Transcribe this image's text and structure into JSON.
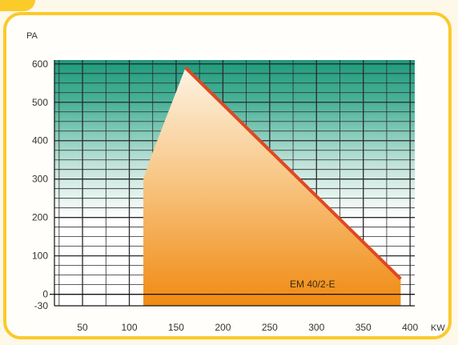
{
  "chart_data": {
    "type": "area",
    "series": [
      {
        "name": "EM 40/2-E",
        "x": [
          115,
          115,
          125,
          160,
          390,
          390
        ],
        "y": [
          -30,
          300,
          370,
          590,
          40,
          -30
        ]
      }
    ],
    "xlabel": "KW",
    "ylabel": "PA",
    "xlim": [
      20,
      405
    ],
    "ylim": [
      -30,
      610
    ],
    "xticks": [
      50,
      100,
      150,
      200,
      250,
      300,
      350,
      400
    ],
    "yticks": [
      -30,
      0,
      100,
      200,
      300,
      400,
      500,
      600
    ],
    "grid": true,
    "series_label_text": "EM 40/2-E",
    "colors": {
      "grid_top": "#1f9a7c",
      "fill_top": "#fdf3e4",
      "fill_bottom": "#f08a12",
      "edge": "#e04820"
    }
  }
}
